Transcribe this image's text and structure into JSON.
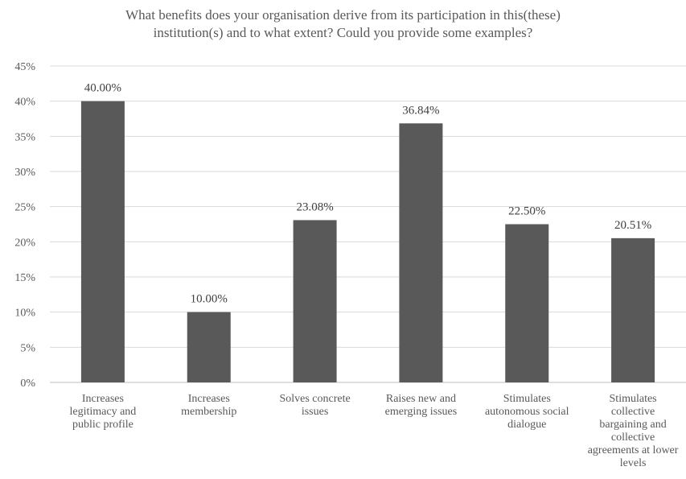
{
  "chart_data": {
    "type": "bar",
    "title_lines": [
      "What benefits does your organisation derive from its participation in this(these)",
      "institution(s) and to what extent? Could you provide some examples?"
    ],
    "categories": [
      [
        "Increases",
        "legitimacy and",
        "public profile"
      ],
      [
        "Increases",
        "membership"
      ],
      [
        "Solves concrete",
        "issues"
      ],
      [
        "Raises new and",
        "emerging issues"
      ],
      [
        "Stimulates",
        "autonomous social",
        "dialogue"
      ],
      [
        "Stimulates",
        "collective",
        "bargaining and",
        "collective",
        "agreements at lower",
        "levels"
      ]
    ],
    "values": [
      40.0,
      10.0,
      23.08,
      36.84,
      22.5,
      20.51
    ],
    "data_labels": [
      "40.00%",
      "10.00%",
      "23.08%",
      "36.84%",
      "22.50%",
      "20.51%"
    ],
    "ylim": [
      0,
      45
    ],
    "y_ticks": [
      0,
      5,
      10,
      15,
      20,
      25,
      30,
      35,
      40,
      45
    ],
    "y_tick_labels": [
      "0%",
      "5%",
      "10%",
      "15%",
      "20%",
      "25%",
      "30%",
      "35%",
      "40%",
      "45%"
    ],
    "xlabel": "",
    "ylabel": "",
    "grid": true,
    "legend": "none",
    "bar_color": "#595959",
    "grid_color": "#d9d9d9"
  }
}
